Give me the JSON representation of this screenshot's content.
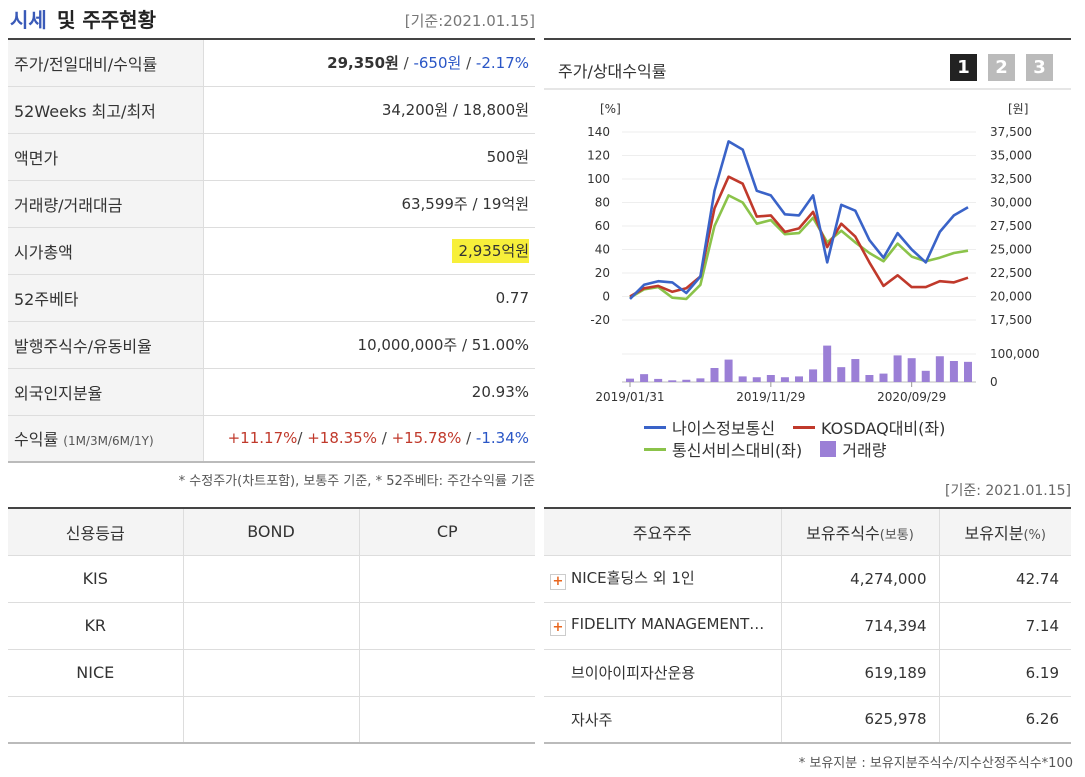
{
  "header": {
    "title_part1": "시세",
    "title_part2": "및 주주현황",
    "date": "[기준:2021.01.15]"
  },
  "stats": {
    "price_label": "주가/전일대비/수익률",
    "price": "29,350원",
    "change": "-650원",
    "change_pct": "-2.17%",
    "w52_label": "52Weeks 최고/최저",
    "w52_value": "34,200원 / 18,800원",
    "face_label": "액면가",
    "face_value": "500원",
    "volume_label": "거래량/거래대금",
    "volume_value": "63,599주 / 19억원",
    "mcap_label": "시가총액",
    "mcap_value": "2,935억원",
    "beta_label": "52주베타",
    "beta_value": "0.77",
    "shares_label": "발행주식수/유동비율",
    "shares_value": "10,000,000주 / 51.00%",
    "foreign_label": "외국인지분율",
    "foreign_value": "20.93%",
    "return_label": "수익률",
    "return_periods": "(1M/3M/6M/1Y)",
    "return_1m": "+11.17%",
    "return_3m": "+18.35%",
    "return_6m": "+15.78%",
    "return_1y": "-1.34%"
  },
  "note1": "* 수정주가(차트포함), 보통주 기준, * 52주베타: 주간수익률 기준",
  "credit": {
    "headers": [
      "신용등급",
      "BOND",
      "CP"
    ],
    "rows": [
      "KIS",
      "KR",
      "NICE",
      ""
    ]
  },
  "chart_panel": {
    "title": "주가/상대수익률",
    "tabs": [
      "1",
      "2",
      "3"
    ]
  },
  "chart_data": {
    "type": "line",
    "left_unit": "[%]",
    "right_unit": "[원]",
    "y_ticks": [
      140,
      120,
      100,
      80,
      60,
      40,
      20,
      0,
      -20
    ],
    "y_right_ticks": [
      "37,500",
      "35,000",
      "32,500",
      "30,000",
      "27,500",
      "25,000",
      "22,500",
      "20,000",
      "17,500"
    ],
    "ylim": [
      -20,
      140
    ],
    "volume_ticks": [
      "100,000",
      "0"
    ],
    "volume_max": 100000,
    "x_tick_labels": [
      "2019/01/31",
      "2019/11/29",
      "2020/09/29"
    ],
    "x_tick_index": [
      0,
      10,
      20
    ],
    "series": [
      {
        "name": "나이스정보통신",
        "color": "#3a63c8",
        "values": [
          -2,
          10,
          13,
          12,
          3,
          17,
          90,
          132,
          125,
          90,
          86,
          70,
          69,
          86,
          29,
          78,
          73,
          48,
          33,
          54,
          40,
          29,
          55,
          69,
          76
        ]
      },
      {
        "name": "KOSDAQ대비(좌)",
        "color": "#c0392b",
        "values": [
          0,
          7,
          9,
          4,
          7,
          17,
          75,
          102,
          96,
          68,
          69,
          55,
          58,
          72,
          42,
          62,
          51,
          29,
          9,
          18,
          8,
          8,
          13,
          12,
          16
        ]
      },
      {
        "name": "통신서비스대비(좌)",
        "color": "#8bc34a",
        "values": [
          -1,
          6,
          8,
          -1,
          -2,
          10,
          60,
          86,
          80,
          62,
          65,
          53,
          54,
          67,
          46,
          56,
          46,
          37,
          30,
          45,
          34,
          30,
          33,
          37,
          39
        ]
      }
    ],
    "volume": {
      "name": "거래량",
      "color": "#9b7fd6",
      "values": [
        12000,
        28000,
        11000,
        6000,
        8000,
        13000,
        50000,
        80000,
        20000,
        17000,
        25000,
        17000,
        20000,
        45000,
        130000,
        53000,
        82000,
        25000,
        30000,
        95000,
        85000,
        40000,
        92000,
        75000,
        72000
      ]
    }
  },
  "date2": "[기준: 2021.01.15]",
  "holders": {
    "headers": [
      "주요주주",
      "보유주식수",
      "(보통)",
      "보유지분",
      "(%)"
    ],
    "rows": [
      {
        "name": "NICE홀딩스 외 1인",
        "shares": "4,274,000",
        "pct": "42.74",
        "expand": true
      },
      {
        "name": "FIDELITY MANAGEMENT…",
        "shares": "714,394",
        "pct": "7.14",
        "expand": true
      },
      {
        "name": "브이아이피자산운용",
        "shares": "619,189",
        "pct": "6.19",
        "expand": false
      },
      {
        "name": "자사주",
        "shares": "625,978",
        "pct": "6.26",
        "expand": false
      }
    ]
  },
  "note2": "* 보유지분 : 보유지분주식수/지수산정주식수*100"
}
